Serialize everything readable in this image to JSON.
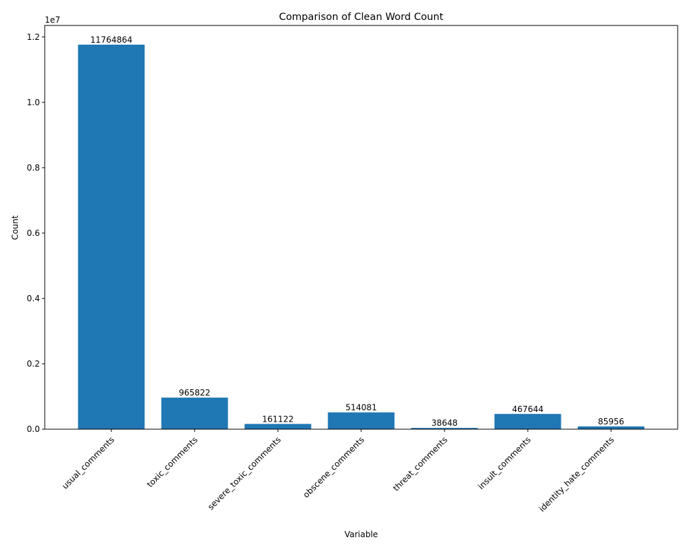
{
  "chart_data": {
    "type": "bar",
    "title": "Comparison of Clean Word Count",
    "xlabel": "Variable",
    "ylabel": "Count",
    "categories": [
      "usual_comments",
      "toxic_comments",
      "severe_toxic_comments",
      "obscene_comments",
      "threat_comments",
      "insult_comments",
      "identity_hate_comments"
    ],
    "values": [
      11764864,
      965822,
      161122,
      514081,
      38648,
      467644,
      85956
    ],
    "data_labels": [
      "11764864",
      "965822",
      "161122",
      "514081",
      "38648",
      "467644",
      "85956"
    ],
    "ylim": [
      0,
      12352607
    ],
    "y_ticks": [
      0,
      2000000,
      4000000,
      6000000,
      8000000,
      10000000,
      12000000
    ],
    "y_tick_labels": [
      "0.0",
      "0.2",
      "0.4",
      "0.6",
      "0.8",
      "1.0",
      "1.2"
    ],
    "y_offset_label": "1e7",
    "bar_color": "#1f77b4",
    "grid": false,
    "legend": false
  }
}
